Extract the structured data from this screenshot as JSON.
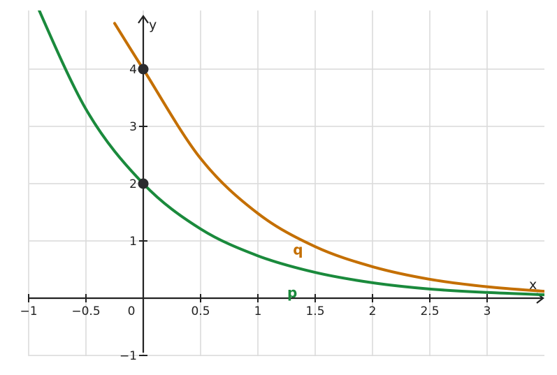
{
  "chart_data": {
    "type": "line",
    "title": "",
    "xlabel": "x",
    "ylabel": "y",
    "xlim": [
      -1,
      3.5
    ],
    "ylim": [
      -1,
      5
    ],
    "grid": true,
    "x_ticks": [
      -1,
      -0.5,
      0,
      0.5,
      1,
      1.5,
      2,
      2.5,
      3
    ],
    "x_tick_labels": [
      "−1",
      "−0.5",
      "0",
      "0.5",
      "1",
      "1.5",
      "2",
      "2.5",
      "3"
    ],
    "y_ticks": [
      -1,
      1,
      2,
      3,
      4
    ],
    "y_tick_labels": [
      "−1",
      "1",
      "2",
      "3",
      "4"
    ],
    "series": [
      {
        "name": "q",
        "color": "#c46f00",
        "x": [
          -0.25,
          0,
          0.5,
          1,
          1.5,
          2,
          2.5,
          3,
          3.5
        ],
        "y": [
          4.8,
          4,
          2.44,
          1.48,
          0.9,
          0.55,
          0.33,
          0.2,
          0.12
        ],
        "label_at": [
          1.35,
          0.85
        ]
      },
      {
        "name": "p",
        "color": "#1a8a3c",
        "x": [
          -1,
          -0.5,
          0,
          0.5,
          1,
          1.5,
          2,
          2.5,
          3,
          3.5
        ],
        "y": [
          5.44,
          3.3,
          2,
          1.21,
          0.74,
          0.45,
          0.27,
          0.16,
          0.1,
          0.06
        ],
        "label_at": [
          1.3,
          0.1
        ]
      }
    ],
    "points": [
      {
        "x": 0,
        "y": 4
      },
      {
        "x": 0,
        "y": 2
      }
    ]
  }
}
